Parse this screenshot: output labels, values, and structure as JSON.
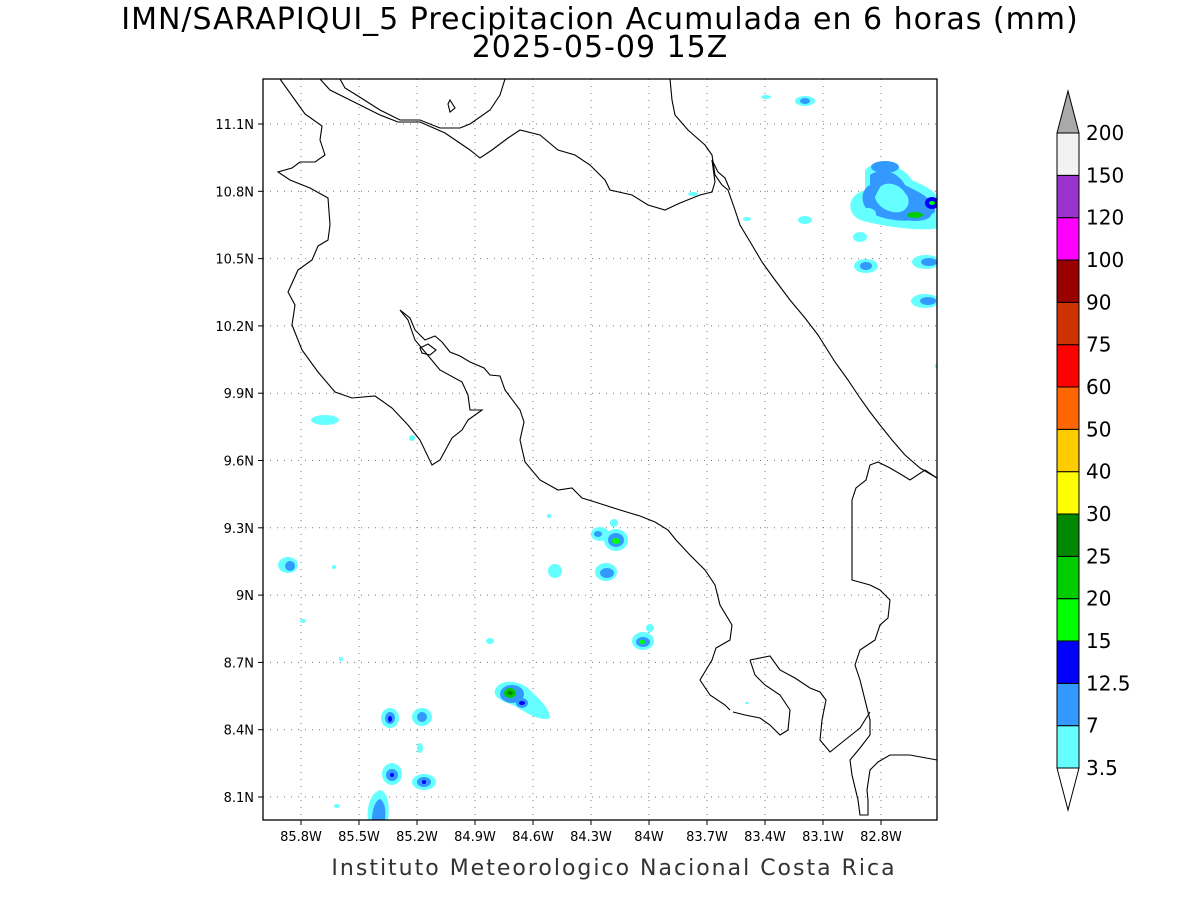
{
  "title": {
    "line1": "IMN/SARAPIQUI_5 Precipitacion Acumulada en 6 horas (mm)",
    "line2": "2025-05-09 15Z"
  },
  "footer": "Instituto Meteorologico Nacional Costa Rica",
  "map": {
    "lat_labels": [
      "11.1N",
      "10.8N",
      "10.5N",
      "10.2N",
      "9.9N",
      "9.6N",
      "9.3N",
      "9N",
      "8.7N",
      "8.4N",
      "8.1N"
    ],
    "lon_labels": [
      "85.8W",
      "85.5W",
      "85.2W",
      "84.9W",
      "84.6W",
      "84.3W",
      "84W",
      "83.7W",
      "83.4W",
      "83.1W",
      "82.8W"
    ],
    "grid": "dotted"
  },
  "colorbar": {
    "labels": [
      "3.5",
      "7",
      "12.5",
      "15",
      "20",
      "25",
      "30",
      "40",
      "50",
      "60",
      "75",
      "90",
      "100",
      "120",
      "150",
      "200"
    ],
    "colors": [
      "#66ffff",
      "#3399ff",
      "#0000ff",
      "#00ff00",
      "#00cc00",
      "#008800",
      "#ffff00",
      "#ffcc00",
      "#ff6600",
      "#ff0000",
      "#cc3300",
      "#990000",
      "#ff00ff",
      "#9933cc",
      "#f2f2f2",
      "#aaaaaa"
    ]
  }
}
